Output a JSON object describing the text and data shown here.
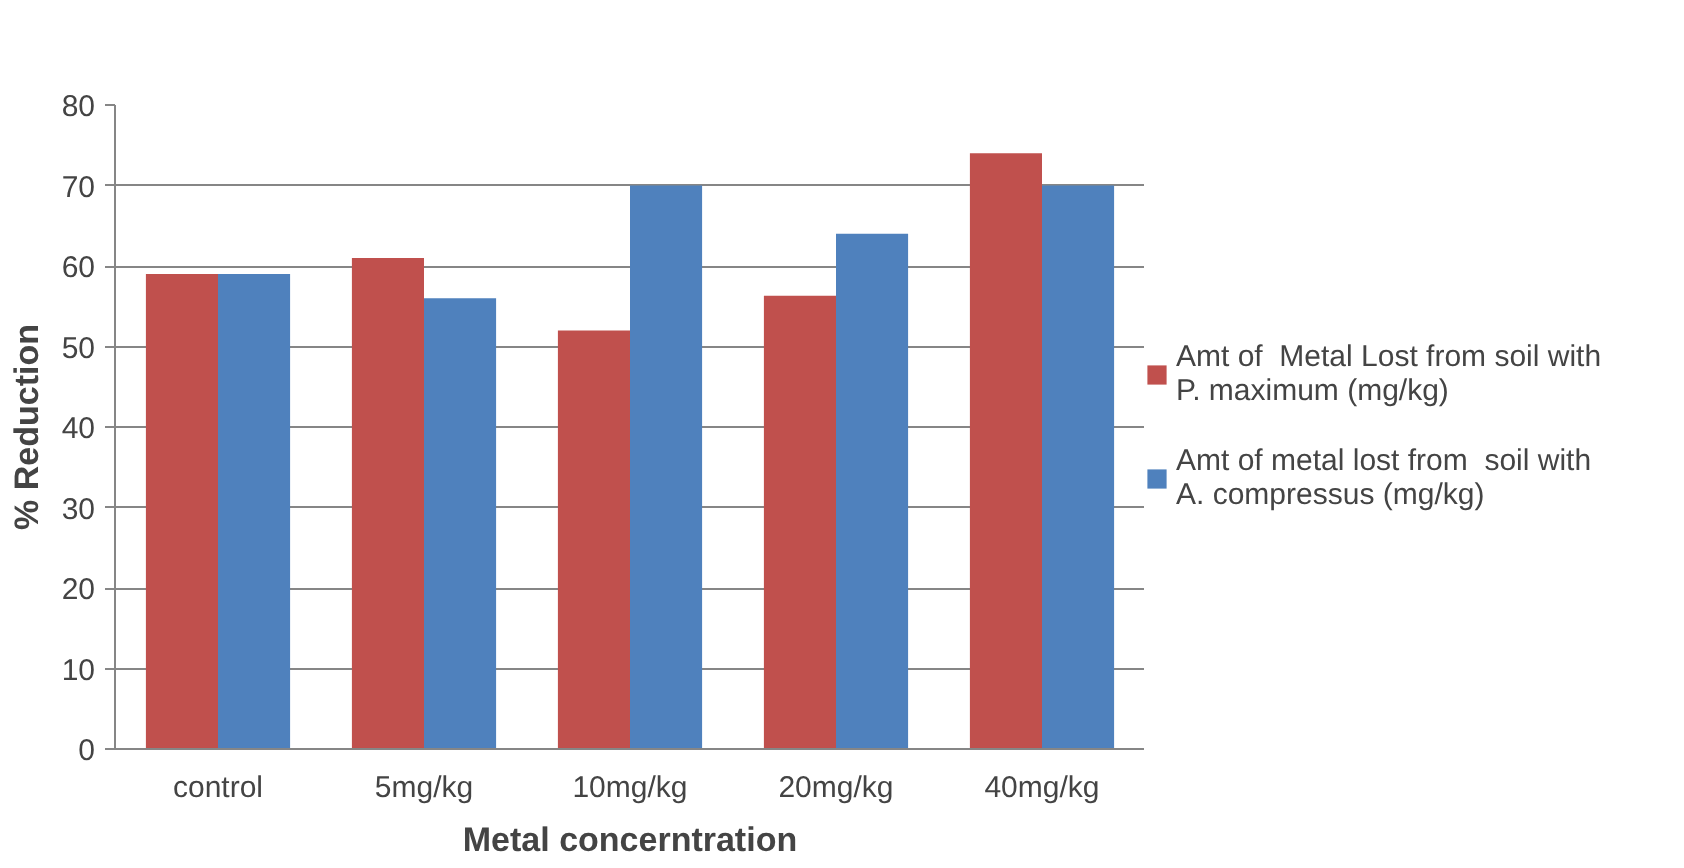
{
  "chart_data": {
    "type": "bar",
    "xlabel": "Metal concerntration",
    "ylabel": "% Reduction",
    "categories": [
      "control",
      "5mg/kg",
      "10mg/kg",
      "20mg/kg",
      "40mg/kg"
    ],
    "series": [
      {
        "name": "Amt of  Metal Lost from soil with P. maximum (mg/kg)",
        "color": "#c0504d",
        "values": [
          59,
          61,
          52,
          56.3,
          74
        ]
      },
      {
        "name": "Amt of metal lost from  soil with A. compressus (mg/kg)",
        "color": "#4f81bd",
        "values": [
          59,
          56,
          70,
          64,
          70
        ]
      }
    ],
    "ylim": [
      0,
      80
    ],
    "yticks": [
      0,
      10,
      20,
      30,
      40,
      50,
      60,
      70,
      80
    ],
    "grid": "y",
    "legend": "right"
  }
}
